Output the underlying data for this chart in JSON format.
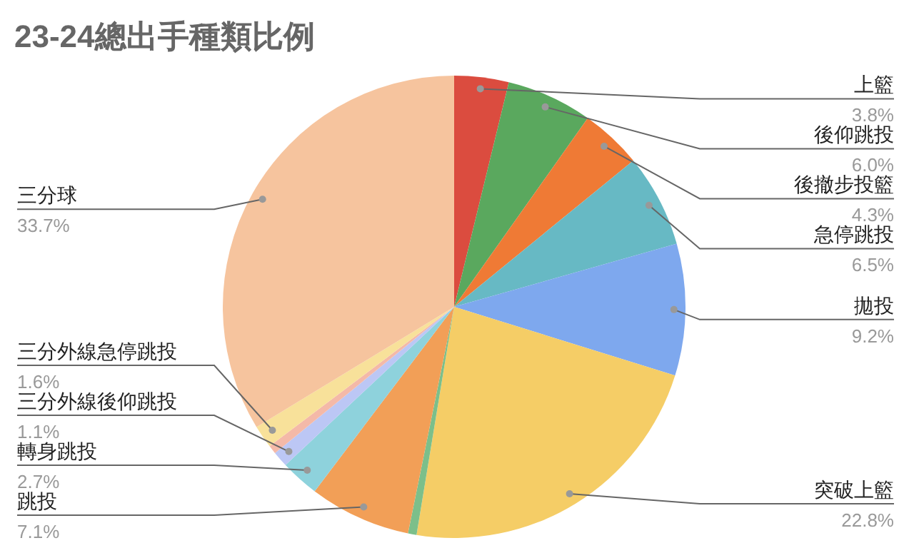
{
  "chart_data": {
    "type": "pie",
    "title": "23-24總出手種類比例",
    "categories": [
      "上籃",
      "後仰跳投",
      "後撤步投籃",
      "急停跳投",
      "拋投",
      "突破上籃",
      null,
      "跳投",
      "轉身跳投",
      "三分外線後仰跳投",
      null,
      "三分外線急停跳投",
      "三分球"
    ],
    "values": [
      3.8,
      6.0,
      4.3,
      6.5,
      9.2,
      22.8,
      0.6,
      7.1,
      2.7,
      1.1,
      0.6,
      1.6,
      33.7
    ],
    "value_labels": [
      "3.8%",
      "6.0%",
      "4.3%",
      "6.5%",
      "9.2%",
      "22.8%",
      null,
      "7.1%",
      "2.7%",
      "1.1%",
      null,
      "1.6%",
      "33.7%"
    ],
    "colors": [
      "#db4c3f",
      "#5aa85e",
      "#ef7a35",
      "#67b9c4",
      "#7ea8ee",
      "#f5cd66",
      "#7cbf8a",
      "#f29f57",
      "#8ed2dc",
      "#bcc7f5",
      "#f4b9a8",
      "#f8e19a",
      "#f6c49e"
    ]
  }
}
